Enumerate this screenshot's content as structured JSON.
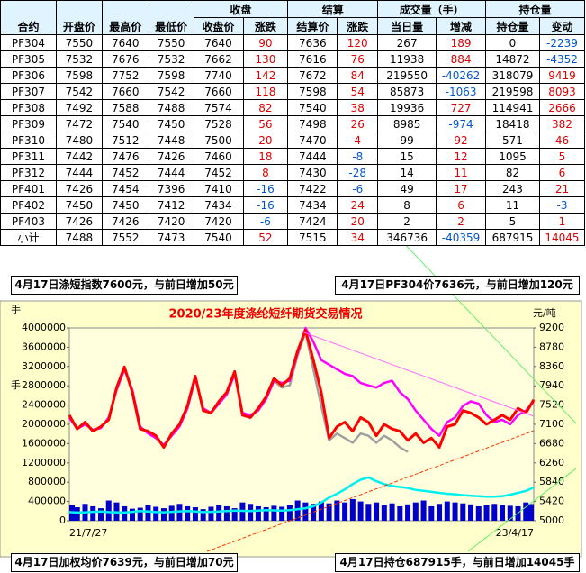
{
  "table": {
    "header_left": [
      "合约",
      "开盘价",
      "最高价",
      "最低价"
    ],
    "groups": [
      "收盘",
      "结算",
      "成交量（手）",
      "持仓量"
    ],
    "subheaders": [
      "收盘价",
      "涨跌",
      "结算价",
      "涨跌",
      "当日量",
      "增减",
      "持仓量",
      "变动"
    ],
    "rows": [
      [
        "PF304",
        7550,
        7640,
        7550,
        7640,
        90,
        7636,
        120,
        267,
        189,
        0,
        -2239
      ],
      [
        "PF305",
        7532,
        7676,
        7532,
        7662,
        130,
        7616,
        76,
        11938,
        884,
        14872,
        -4352
      ],
      [
        "PF306",
        7598,
        7752,
        7598,
        7740,
        142,
        7672,
        84,
        219550,
        -40262,
        318079,
        9419
      ],
      [
        "PF307",
        7542,
        7660,
        7542,
        7660,
        118,
        7598,
        54,
        85873,
        -1063,
        219598,
        8093
      ],
      [
        "PF308",
        7492,
        7588,
        7488,
        7574,
        82,
        7540,
        38,
        19936,
        727,
        114941,
        2666
      ],
      [
        "PF309",
        7472,
        7540,
        7450,
        7528,
        56,
        7498,
        26,
        8985,
        -974,
        18418,
        382
      ],
      [
        "PF310",
        7480,
        7512,
        7448,
        7500,
        20,
        7470,
        4,
        99,
        92,
        571,
        46
      ],
      [
        "PF311",
        7442,
        7476,
        7426,
        7460,
        18,
        7444,
        -8,
        15,
        12,
        1095,
        5
      ],
      [
        "PF312",
        7444,
        7452,
        7444,
        7452,
        8,
        7430,
        -28,
        14,
        11,
        82,
        6
      ],
      [
        "PF401",
        7426,
        7454,
        7396,
        7410,
        -16,
        7422,
        -6,
        49,
        17,
        243,
        21
      ],
      [
        "PF402",
        7450,
        7450,
        7412,
        7434,
        -16,
        7434,
        24,
        8,
        6,
        11,
        -3
      ],
      [
        "PF403",
        7426,
        7426,
        7420,
        7420,
        -6,
        7424,
        20,
        2,
        2,
        5,
        1
      ],
      [
        "小计",
        7488,
        7552,
        7473,
        7540,
        52,
        7515,
        34,
        346736,
        -40359,
        687915,
        14045
      ]
    ]
  },
  "notes": [
    "4月17日涤短指数7600元，与前日增加50元",
    "4月17日PF304价7636元，与前日增加120元",
    "4月17日加权均价7639元，与前日增加70元",
    "4月17日持仓687915手，与前日增加14045手"
  ],
  "chart_data": {
    "type": "combo",
    "title": "2020/23年度涤纶短纤期货交易情况",
    "y_unit": "手",
    "y_label": "手",
    "y2_label": "元/吨",
    "categories": [
      "21/7/27",
      null,
      null,
      null,
      null,
      null,
      null,
      null,
      null,
      null,
      null,
      null,
      null,
      null,
      null,
      null,
      null,
      null,
      null,
      null,
      null,
      null,
      null,
      null,
      null,
      null,
      null,
      null,
      null,
      null,
      null,
      null,
      null,
      null,
      null,
      null,
      null,
      null,
      null,
      null,
      null,
      null,
      null,
      null,
      null,
      null,
      null,
      null,
      null,
      null,
      null,
      null,
      null,
      null,
      null,
      null,
      null,
      null,
      null,
      "23/4/17"
    ],
    "ylim": [
      0,
      4000000
    ],
    "yticks": [
      0,
      400000,
      800000,
      1200000,
      1600000,
      2000000,
      2400000,
      2800000,
      3200000,
      3600000,
      4000000
    ],
    "y2lim": [
      5000,
      9200
    ],
    "y2ticks": [
      5000,
      5420,
      5840,
      6260,
      6680,
      7100,
      7520,
      7940,
      8360,
      8780,
      9200
    ],
    "series": [
      {
        "type": "bar",
        "axis": "y",
        "color": "#0000cc",
        "values": [
          320000,
          280000,
          350000,
          300000,
          260000,
          420000,
          380000,
          300000,
          250000,
          270000,
          330000,
          290000,
          260000,
          310000,
          350000,
          300000,
          280000,
          240000,
          290000,
          320000,
          300000,
          260000,
          380000,
          350000,
          300000,
          280000,
          310000,
          290000,
          330000,
          420000,
          380000,
          350000,
          400000,
          360000,
          420000,
          380000,
          450000,
          400000,
          350000,
          380000,
          320000,
          360000,
          300000,
          340000,
          380000,
          420000,
          300000,
          350000,
          400000,
          380000,
          360000,
          340000,
          300000,
          320000,
          350000,
          330000,
          310000,
          300000,
          380000,
          346736
        ]
      },
      {
        "type": "line",
        "axis": "y",
        "color": "#00f0f0",
        "values": [
          180000,
          170000,
          175000,
          185000,
          190000,
          180000,
          175000,
          170000,
          185000,
          200000,
          190000,
          180000,
          175000,
          185000,
          195000,
          200000,
          190000,
          180000,
          185000,
          190000,
          200000,
          210000,
          205000,
          200000,
          210000,
          220000,
          215000,
          210000,
          220000,
          240000,
          260000,
          300000,
          380000,
          480000,
          560000,
          650000,
          760000,
          850000,
          900000,
          820000,
          760000,
          720000,
          700000,
          680000,
          640000,
          620000,
          600000,
          580000,
          560000,
          550000,
          530000,
          520000,
          510000,
          500000,
          500000,
          510000,
          540000,
          580000,
          620000,
          687915
        ]
      },
      {
        "type": "line",
        "axis": "y2",
        "color": "#a0a0a0",
        "values": [
          null,
          null,
          null,
          null,
          null,
          null,
          null,
          null,
          null,
          null,
          null,
          null,
          null,
          null,
          null,
          null,
          null,
          null,
          null,
          null,
          null,
          null,
          null,
          null,
          null,
          null,
          8050,
          7900,
          7950,
          8600,
          9100,
          8300,
          7500,
          6750,
          6900,
          6800,
          6700,
          6900,
          6850,
          6700,
          6850,
          6750,
          6600,
          6500,
          null,
          null,
          null,
          null,
          null,
          null,
          null,
          null,
          null,
          null,
          null,
          null,
          null,
          null,
          null,
          null
        ]
      },
      {
        "type": "line",
        "axis": "y2",
        "color": "#ff00ff",
        "values": [
          7250,
          7000,
          7100,
          6980,
          7020,
          7250,
          7850,
          8300,
          7850,
          7050,
          6900,
          6800,
          6650,
          6850,
          7050,
          7450,
          8100,
          7450,
          7350,
          7550,
          7750,
          8200,
          7350,
          7300,
          7400,
          7650,
          8050,
          8000,
          8050,
          8650,
          9200,
          8900,
          8500,
          8400,
          8300,
          8200,
          8150,
          8000,
          7950,
          7900,
          8000,
          8050,
          7800,
          7650,
          7400,
          7200,
          7000,
          6850,
          7150,
          7250,
          7500,
          7600,
          7550,
          7300,
          7150,
          7200,
          7100,
          7300,
          7400,
          7600
        ]
      },
      {
        "type": "line",
        "axis": "y2",
        "color": "#ff0000",
        "values": [
          7300,
          7000,
          7150,
          6950,
          7050,
          7200,
          7900,
          8350,
          7800,
          7000,
          6950,
          6850,
          6600,
          6900,
          7100,
          7500,
          8150,
          7400,
          7350,
          7600,
          7800,
          8250,
          7300,
          7250,
          7450,
          7700,
          8100,
          7950,
          8100,
          8700,
          9150,
          8500,
          7800,
          6800,
          7050,
          7150,
          6950,
          7250,
          7150,
          6850,
          7100,
          7000,
          6950,
          6750,
          6900,
          6700,
          6800,
          6600,
          7050,
          7100,
          7400,
          7350,
          7250,
          7100,
          7200,
          7300,
          7200,
          7450,
          7350,
          7636
        ]
      }
    ]
  }
}
